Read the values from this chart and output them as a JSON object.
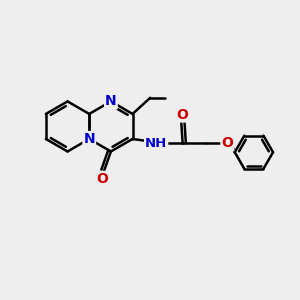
{
  "bg_color": "#eeeeee",
  "bond_color": "#000000",
  "bond_width": 1.8,
  "atom_colors": {
    "N": "#0000cc",
    "O": "#cc0000",
    "C": "#000000"
  },
  "font_size": 10,
  "fig_size": [
    3.0,
    3.0
  ],
  "dpi": 100,
  "xlim": [
    0,
    10
  ],
  "ylim": [
    0,
    10
  ]
}
